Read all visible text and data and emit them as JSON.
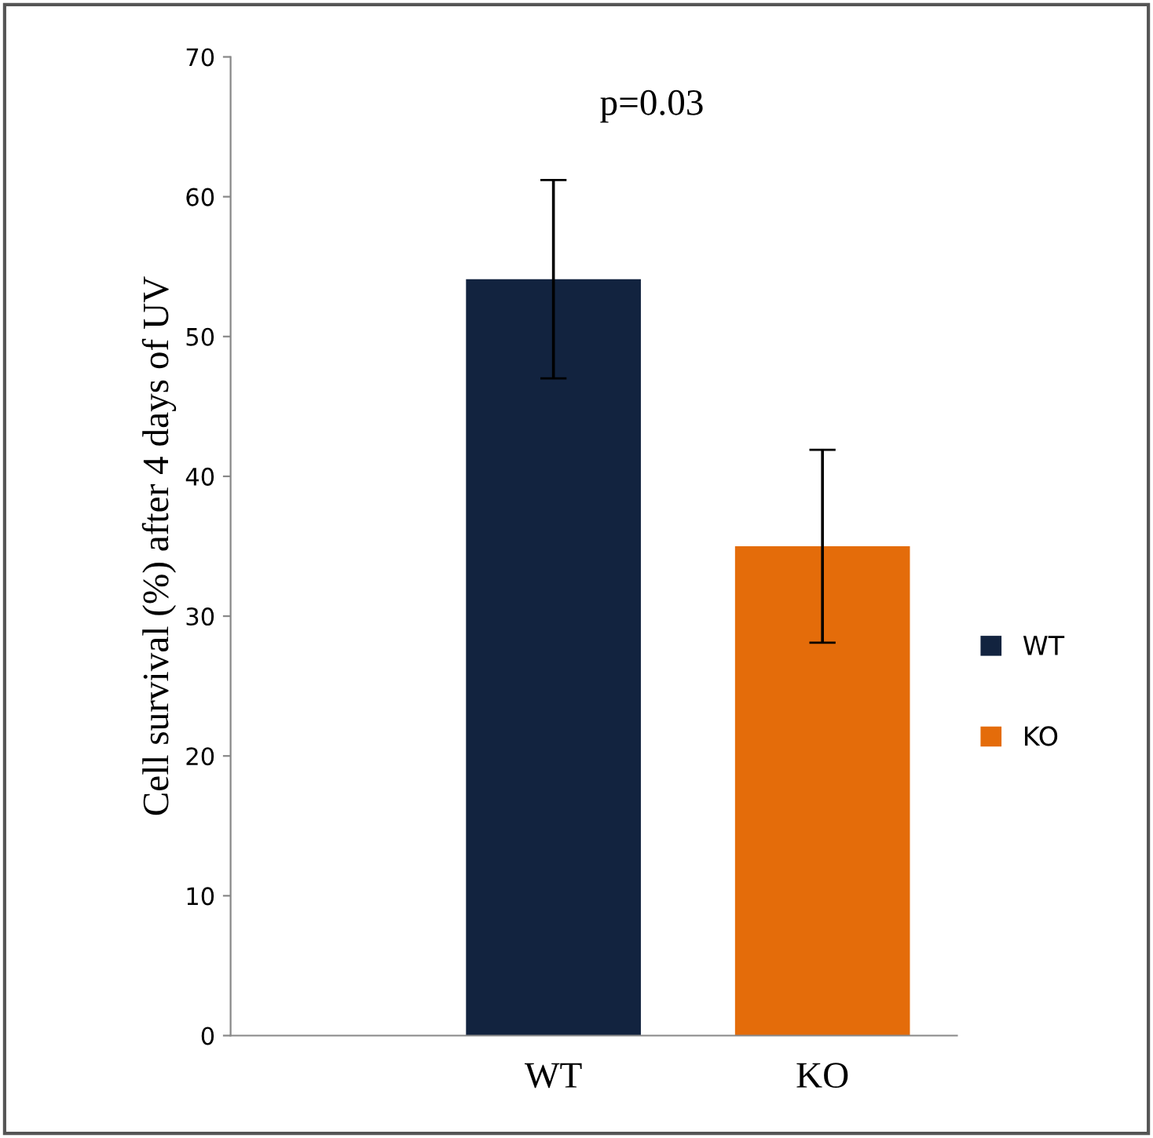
{
  "chart_data": {
    "type": "bar",
    "ylabel": "Cell survival (%) after 4 days of UV",
    "categories": [
      "WT",
      "KO"
    ],
    "series": [
      {
        "name": "WT",
        "color": "#12233f",
        "values": [
          54.1,
          null
        ],
        "errors": [
          7.1,
          null
        ]
      },
      {
        "name": "KO",
        "color": "#e46c0a",
        "values": [
          null,
          35.0
        ],
        "errors": [
          null,
          6.9
        ]
      }
    ],
    "annotations": [
      "p=0.03"
    ],
    "ylim": [
      0,
      70
    ],
    "yticks": [
      0,
      10,
      20,
      30,
      40,
      50,
      60,
      70
    ],
    "grid": false,
    "legend": "right"
  }
}
